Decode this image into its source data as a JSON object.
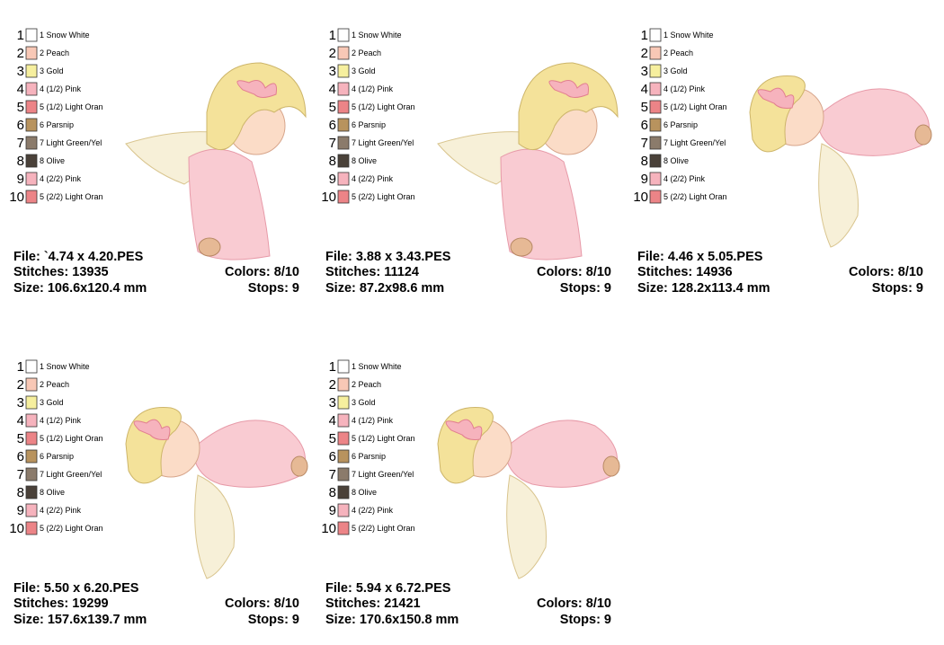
{
  "designs": [
    {
      "colors": [
        {
          "index": 1,
          "label": "1 Snow White",
          "swatch": "#ffffff"
        },
        {
          "index": 2,
          "label": "2 Peach",
          "swatch": "#f8c8b6"
        },
        {
          "index": 3,
          "label": "3 Gold",
          "swatch": "#f6ef9e"
        },
        {
          "index": 4,
          "label": "4 (1/2) Pink",
          "swatch": "#f6b3bd"
        },
        {
          "index": 5,
          "label": "5 (1/2) Light Oran",
          "swatch": "#ec8487"
        },
        {
          "index": 6,
          "label": "6 Parsnip",
          "swatch": "#b8935e"
        },
        {
          "index": 7,
          "label": "7 Light Green/Yel",
          "swatch": "#8b7b6b"
        },
        {
          "index": 8,
          "label": "8 Olive",
          "swatch": "#4a4139"
        },
        {
          "index": 9,
          "label": "4 (2/2) Pink",
          "swatch": "#f6b3bd"
        },
        {
          "index": 10,
          "label": "5 (2/2) Light Oran",
          "swatch": "#ec8487"
        }
      ],
      "file": "File: `4.74 x 4.20.PES",
      "stitches": "Stitches: 13935",
      "color_count": "Colors: 8/10",
      "size": "Size: 106.6x120.4 mm",
      "stops": "Stops: 9",
      "pose": "kneel"
    },
    {
      "colors": [
        {
          "index": 1,
          "label": "1 Snow White",
          "swatch": "#ffffff"
        },
        {
          "index": 2,
          "label": "2 Peach",
          "swatch": "#f8c8b6"
        },
        {
          "index": 3,
          "label": "3 Gold",
          "swatch": "#f6ef9e"
        },
        {
          "index": 4,
          "label": "4 (1/2) Pink",
          "swatch": "#f6b3bd"
        },
        {
          "index": 5,
          "label": "5 (1/2) Light Oran",
          "swatch": "#ec8487"
        },
        {
          "index": 6,
          "label": "6 Parsnip",
          "swatch": "#b8935e"
        },
        {
          "index": 7,
          "label": "7 Light Green/Yel",
          "swatch": "#8b7b6b"
        },
        {
          "index": 8,
          "label": "8 Olive",
          "swatch": "#4a4139"
        },
        {
          "index": 9,
          "label": "4 (2/2) Pink",
          "swatch": "#f6b3bd"
        },
        {
          "index": 10,
          "label": "5 (2/2) Light Oran",
          "swatch": "#ec8487"
        }
      ],
      "file": "File: 3.88 x 3.43.PES",
      "stitches": "Stitches: 11124",
      "color_count": "Colors: 8/10",
      "size": "Size: 87.2x98.6 mm",
      "stops": "Stops: 9",
      "pose": "kneel"
    },
    {
      "colors": [
        {
          "index": 1,
          "label": "1 Snow White",
          "swatch": "#ffffff"
        },
        {
          "index": 2,
          "label": "2 Peach",
          "swatch": "#f8c8b6"
        },
        {
          "index": 3,
          "label": "3 Gold",
          "swatch": "#f6ef9e"
        },
        {
          "index": 4,
          "label": "4 (1/2) Pink",
          "swatch": "#f6b3bd"
        },
        {
          "index": 5,
          "label": "5 (1/2) Light Oran",
          "swatch": "#ec8487"
        },
        {
          "index": 6,
          "label": "6 Parsnip",
          "swatch": "#b8935e"
        },
        {
          "index": 7,
          "label": "7 Light Green/Yel",
          "swatch": "#8b7b6b"
        },
        {
          "index": 8,
          "label": "8 Olive",
          "swatch": "#4a4139"
        },
        {
          "index": 9,
          "label": "4 (2/2) Pink",
          "swatch": "#f6b3bd"
        },
        {
          "index": 10,
          "label": "5 (2/2) Light Oran",
          "swatch": "#ec8487"
        }
      ],
      "file": "File: 4.46 x 5.05.PES",
      "stitches": "Stitches: 14936",
      "color_count": "Colors: 8/10",
      "size": "Size: 128.2x113.4 mm",
      "stops": "Stops: 9",
      "pose": "lie"
    },
    {
      "colors": [
        {
          "index": 1,
          "label": "1 Snow White",
          "swatch": "#ffffff"
        },
        {
          "index": 2,
          "label": "2 Peach",
          "swatch": "#f8c8b6"
        },
        {
          "index": 3,
          "label": "3 Gold",
          "swatch": "#f6ef9e"
        },
        {
          "index": 4,
          "label": "4 (1/2) Pink",
          "swatch": "#f6b3bd"
        },
        {
          "index": 5,
          "label": "5 (1/2) Light Oran",
          "swatch": "#ec8487"
        },
        {
          "index": 6,
          "label": "6 Parsnip",
          "swatch": "#b8935e"
        },
        {
          "index": 7,
          "label": "7 Light Green/Yel",
          "swatch": "#8b7b6b"
        },
        {
          "index": 8,
          "label": "8 Olive",
          "swatch": "#4a4139"
        },
        {
          "index": 9,
          "label": "4 (2/2) Pink",
          "swatch": "#f6b3bd"
        },
        {
          "index": 10,
          "label": "5 (2/2) Light Oran",
          "swatch": "#ec8487"
        }
      ],
      "file": "File: 5.50 x 6.20.PES",
      "stitches": "Stitches: 19299",
      "color_count": "Colors: 8/10",
      "size": "Size: 157.6x139.7 mm",
      "stops": "Stops: 9",
      "pose": "lie"
    },
    {
      "colors": [
        {
          "index": 1,
          "label": "1 Snow White",
          "swatch": "#ffffff"
        },
        {
          "index": 2,
          "label": "2 Peach",
          "swatch": "#f8c8b6"
        },
        {
          "index": 3,
          "label": "3 Gold",
          "swatch": "#f6ef9e"
        },
        {
          "index": 4,
          "label": "4 (1/2) Pink",
          "swatch": "#f6b3bd"
        },
        {
          "index": 5,
          "label": "5 (1/2) Light Oran",
          "swatch": "#ec8487"
        },
        {
          "index": 6,
          "label": "6 Parsnip",
          "swatch": "#b8935e"
        },
        {
          "index": 7,
          "label": "7 Light Green/Yel",
          "swatch": "#8b7b6b"
        },
        {
          "index": 8,
          "label": "8 Olive",
          "swatch": "#4a4139"
        },
        {
          "index": 9,
          "label": "4 (2/2) Pink",
          "swatch": "#f6b3bd"
        },
        {
          "index": 10,
          "label": "5 (2/2) Light Oran",
          "swatch": "#ec8487"
        }
      ],
      "file": "File: 5.94 x 6.72.PES",
      "stitches": "Stitches: 21421",
      "color_count": "Colors: 8/10",
      "size": "Size: 170.6x150.8 mm",
      "stops": "Stops: 9",
      "pose": "lie"
    }
  ]
}
